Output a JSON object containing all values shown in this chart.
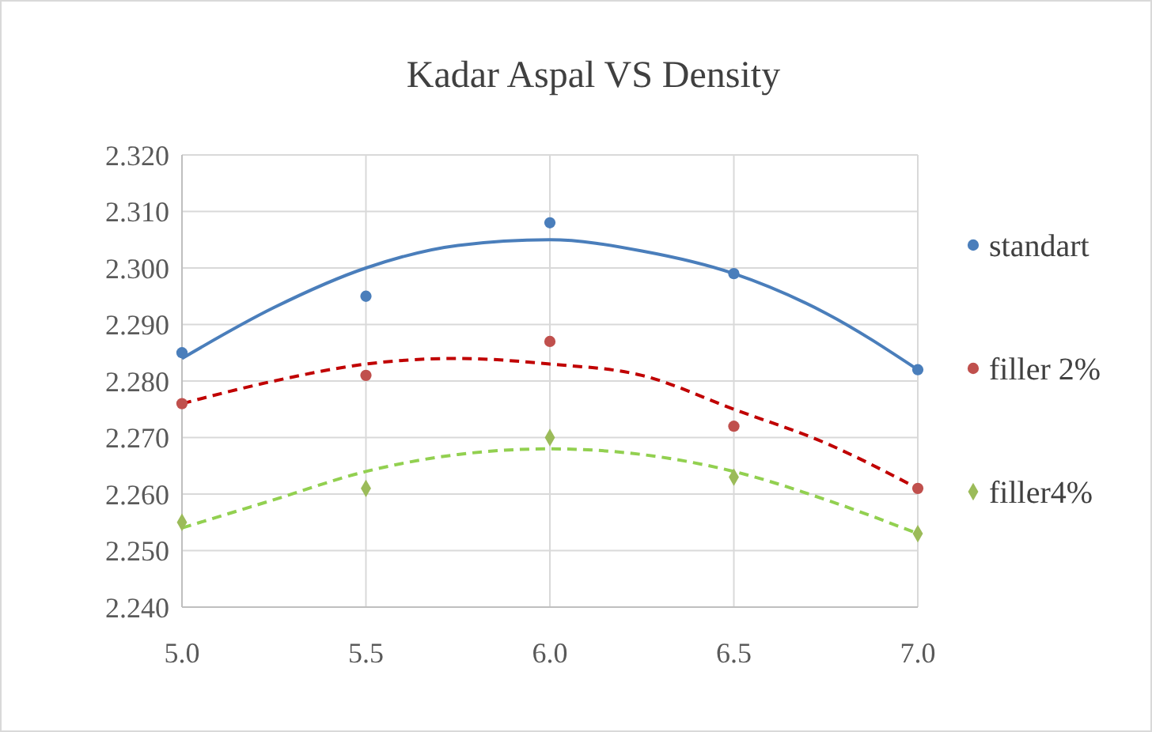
{
  "chart_data": {
    "type": "scatter",
    "title": "Kadar Aspal VS Density",
    "xlim": [
      5.0,
      7.0
    ],
    "xticks": [
      {
        "value": 5,
        "label": "5.0"
      },
      {
        "value": 5.5,
        "label": "5.5"
      },
      {
        "value": 6,
        "label": "6.0"
      },
      {
        "value": 6.5,
        "label": "6.5"
      },
      {
        "value": 7,
        "label": "7.0"
      }
    ],
    "ylim": [
      2.24,
      2.32
    ],
    "yticks": [
      {
        "value": 2.24,
        "label": "2.240"
      },
      {
        "value": 2.25,
        "label": "2.250"
      },
      {
        "value": 2.26,
        "label": "2.260"
      },
      {
        "value": 2.27,
        "label": "2.270"
      },
      {
        "value": 2.28,
        "label": "2.280"
      },
      {
        "value": 2.29,
        "label": "2.290"
      },
      {
        "value": 2.3,
        "label": "2.300"
      },
      {
        "value": 2.31,
        "label": "2.310"
      },
      {
        "value": 2.32,
        "label": "2.320"
      }
    ],
    "grid": true,
    "legend": "right",
    "series": [
      {
        "name": "standart",
        "marker": "circle",
        "color": "#4a7ebb",
        "x": [
          5.0,
          5.5,
          6.0,
          6.5,
          7.0
        ],
        "values": [
          2.285,
          2.295,
          2.308,
          2.299,
          2.282
        ]
      },
      {
        "name": "filler 2%",
        "marker": "circle",
        "color": "#c0504d",
        "x": [
          5.0,
          5.5,
          6.0,
          6.5,
          7.0
        ],
        "values": [
          2.276,
          2.281,
          2.287,
          2.272,
          2.261
        ]
      },
      {
        "name": "filler4%",
        "marker": "diamond",
        "color": "#9bbb59",
        "x": [
          5.0,
          5.5,
          6.0,
          6.5,
          7.0
        ],
        "values": [
          2.255,
          2.261,
          2.27,
          2.263,
          2.253
        ]
      },
      {
        "type": "line",
        "line_style": "solid",
        "color": "#4a7ebb",
        "x": [
          5.0,
          5.25,
          5.5,
          5.75,
          6.0,
          6.25,
          6.5,
          6.75,
          7.0
        ],
        "values": [
          2.284,
          2.293,
          2.3,
          2.304,
          2.305,
          2.303,
          2.299,
          2.292,
          2.282
        ]
      },
      {
        "type": "line",
        "line_style": "dashed",
        "color": "#c00000",
        "x": [
          5.0,
          5.25,
          5.5,
          5.75,
          6.0,
          6.25,
          6.5,
          6.75,
          7.0
        ],
        "values": [
          2.276,
          2.28,
          2.283,
          2.284,
          2.283,
          2.281,
          2.275,
          2.269,
          2.261
        ]
      },
      {
        "type": "line",
        "line_style": "dashed",
        "color": "#92d050",
        "x": [
          5.0,
          5.25,
          5.5,
          5.75,
          6.0,
          6.25,
          6.5,
          6.75,
          7.0
        ],
        "values": [
          2.254,
          2.259,
          2.264,
          2.267,
          2.268,
          2.267,
          2.264,
          2.259,
          2.253
        ]
      }
    ]
  }
}
